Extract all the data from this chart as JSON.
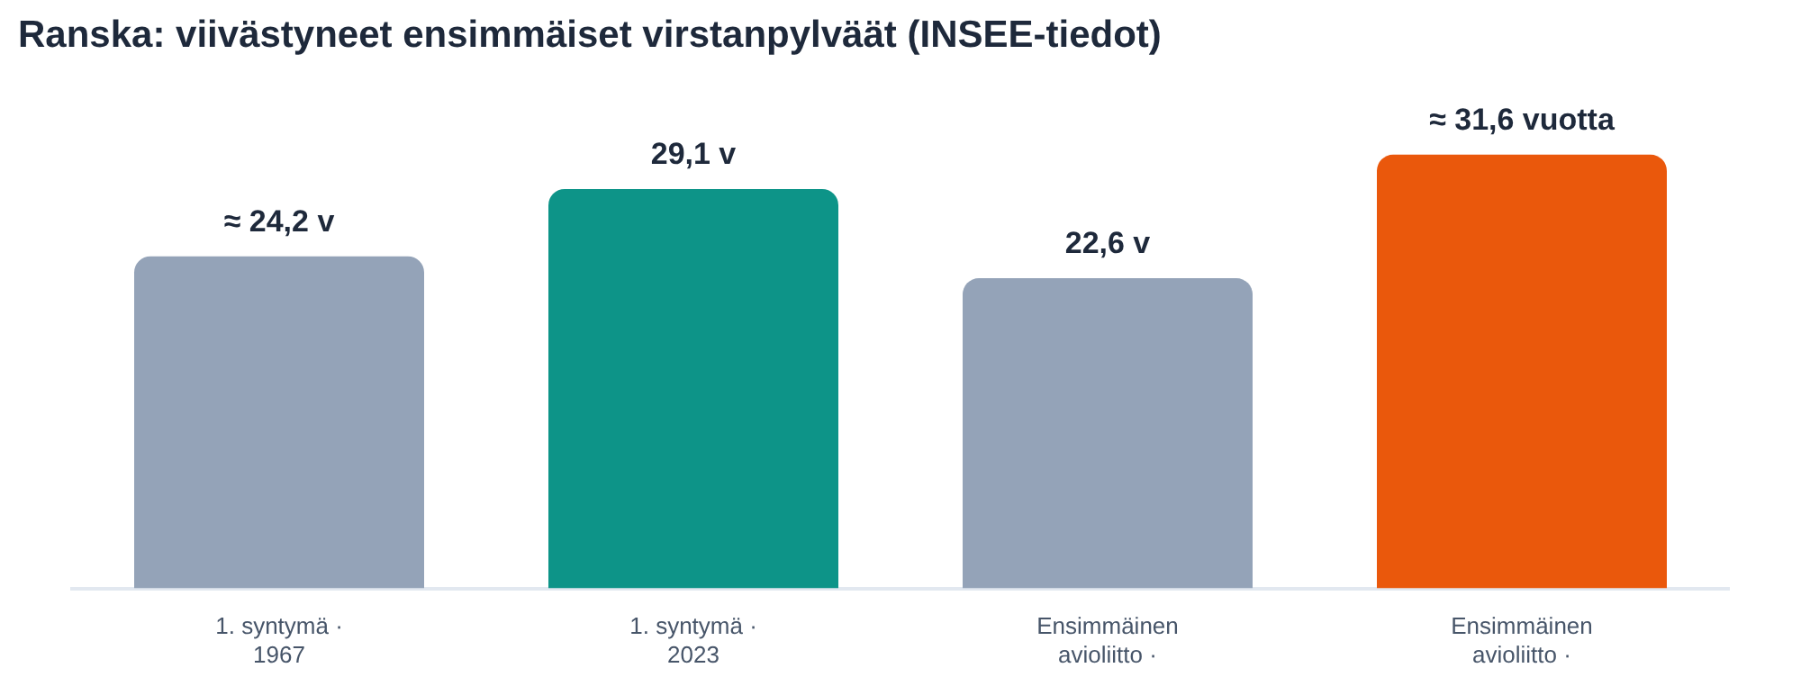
{
  "chart_data": {
    "type": "bar",
    "title": "Ranska: viivästyneet ensimmäiset virstanpylväät (INSEE-tiedot)",
    "categories": [
      "1. syntymä · 1967",
      "1. syntymä · 2023",
      "Ensimmäinen avioliitto ·",
      "Ensimmäinen avioliitto ·"
    ],
    "values": [
      24.2,
      29.1,
      22.6,
      31.6
    ],
    "colors": [
      "#94a3b8",
      "#0d9488",
      "#94a3b8",
      "#ea580c"
    ],
    "value_labels": [
      "≈ 24,2 v",
      "29,1 v",
      "22,6 v",
      "≈ 31,6 vuotta"
    ],
    "grid": false,
    "legend": false
  }
}
